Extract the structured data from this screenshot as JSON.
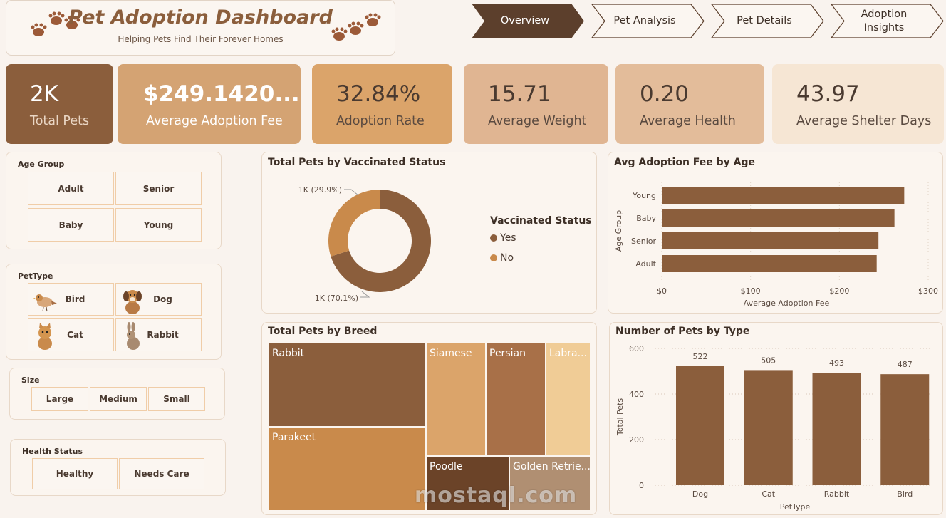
{
  "header": {
    "title": "Pet Adoption Dashboard",
    "subtitle": "Helping Pets Find Their Forever Homes"
  },
  "nav": [
    {
      "label": "Overview",
      "active": true
    },
    {
      "label": "Pet Analysis",
      "active": false
    },
    {
      "label": "Pet Details",
      "active": false
    },
    {
      "label": "Adoption Insights",
      "active": false
    }
  ],
  "kpis": [
    {
      "value": "2K",
      "label": "Total Pets"
    },
    {
      "value": "$249.1420...",
      "label": "Average Adoption Fee"
    },
    {
      "value": "32.84%",
      "label": "Adoption Rate"
    },
    {
      "value": "15.71",
      "label": "Average Weight"
    },
    {
      "value": "0.20",
      "label": "Average Health"
    },
    {
      "value": "43.97",
      "label": "Average Shelter Days"
    }
  ],
  "slicers": {
    "age_group": {
      "title": "Age Group",
      "options": [
        "Adult",
        "Senior",
        "Baby",
        "Young"
      ]
    },
    "pet_type": {
      "title": "PetType",
      "options": [
        {
          "label": "Bird",
          "icon": "bird-icon"
        },
        {
          "label": "Dog",
          "icon": "dog-icon"
        },
        {
          "label": "Cat",
          "icon": "cat-icon"
        },
        {
          "label": "Rabbit",
          "icon": "rabbit-icon"
        }
      ]
    },
    "size": {
      "title": "Size",
      "options": [
        "Large",
        "Medium",
        "Small"
      ]
    },
    "health": {
      "title": "Health Status",
      "options": [
        "Healthy",
        "Needs Care"
      ]
    }
  },
  "colors": {
    "dark": "#8b5e3c",
    "mid": "#d4a373",
    "light": "#f5e6d3",
    "accent": "#c98a4b"
  },
  "chart_data": [
    {
      "type": "pie",
      "title": "Total Pets by Vaccinated Status",
      "legend_title": "Vaccinated Status",
      "legend_position": "right",
      "categories": [
        "Yes",
        "No"
      ],
      "values": [
        70.1,
        29.9
      ],
      "labels": [
        "1K (70.1%)",
        "1K (29.9%)"
      ],
      "colors": [
        "#8b5e3c",
        "#c98a4b"
      ]
    },
    {
      "type": "bar",
      "title": "Avg Adoption Fee by Age",
      "categories": [
        "Young",
        "Baby",
        "Senior",
        "Adult"
      ],
      "values": [
        273,
        262,
        244,
        242
      ],
      "xlabel": "Average Adoption Fee",
      "ylabel": "Age Group",
      "xlim": [
        0,
        300
      ],
      "ticks": [
        "$0",
        "$100",
        "$200",
        "$300"
      ]
    },
    {
      "type": "heatmap",
      "title": "Total Pets by Breed",
      "cells": [
        {
          "label": "Rabbit",
          "color": "#8b5e3c"
        },
        {
          "label": "Parakeet",
          "color": "#c98a4b"
        },
        {
          "label": "Siamese",
          "color": "#dba46a"
        },
        {
          "label": "Persian",
          "color": "#a87048"
        },
        {
          "label": "Labra...",
          "color": "#f0cc96"
        },
        {
          "label": "Poodle",
          "color": "#6b4328"
        },
        {
          "label": "Golden Retrie...",
          "color": "#b08f72"
        }
      ]
    },
    {
      "type": "bar",
      "title": "Number of Pets by Type",
      "categories": [
        "Dog",
        "Cat",
        "Rabbit",
        "Bird"
      ],
      "values": [
        522,
        505,
        493,
        487
      ],
      "xlabel": "PetType",
      "ylabel": "Total Pets",
      "ylim": [
        0,
        600
      ],
      "ticks": [
        0,
        200,
        400,
        600
      ],
      "grid": true
    }
  ],
  "watermark": "mostaql.com"
}
